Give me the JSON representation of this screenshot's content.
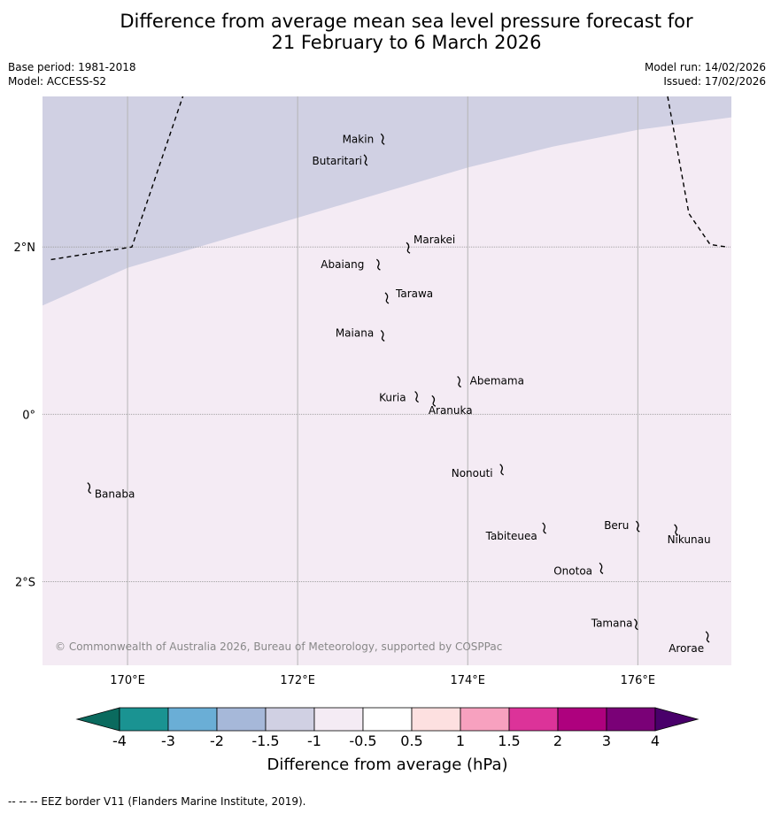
{
  "title": {
    "line1": "Difference from average mean sea level pressure forecast for",
    "line2": "21 February to 6 March 2026"
  },
  "meta": {
    "base_period": "Base period: 1981-2018",
    "model": "Model: ACCESS-S2",
    "model_run": "Model run: 14/02/2026",
    "issued": "Issued: 17/02/2026"
  },
  "map": {
    "lon_labels": [
      "170°E",
      "172°E",
      "174°E",
      "176°E"
    ],
    "lat_labels": [
      "2°N",
      "0°",
      "2°S"
    ],
    "copyright": "© Commonwealth of Australia 2026, Bureau of Meteorology, supported by COSPPac",
    "places": [
      {
        "name": "Makin",
        "lon": 173.0,
        "lat": 3.3
      },
      {
        "name": "Butaritari",
        "lon": 172.8,
        "lat": 3.05
      },
      {
        "name": "Marakei",
        "lon": 173.3,
        "lat": 2.0
      },
      {
        "name": "Abaiang",
        "lon": 172.95,
        "lat": 1.8
      },
      {
        "name": "Tarawa",
        "lon": 173.05,
        "lat": 1.4
      },
      {
        "name": "Maiana",
        "lon": 173.0,
        "lat": 0.95
      },
      {
        "name": "Abemama",
        "lon": 173.9,
        "lat": 0.4
      },
      {
        "name": "Kuria",
        "lon": 173.4,
        "lat": 0.22
      },
      {
        "name": "Aranuka",
        "lon": 173.6,
        "lat": 0.17
      },
      {
        "name": "Nonouti",
        "lon": 174.4,
        "lat": -0.65
      },
      {
        "name": "Banaba",
        "lon": 169.55,
        "lat": -0.87
      },
      {
        "name": "Tabiteuea",
        "lon": 174.9,
        "lat": -1.35
      },
      {
        "name": "Beru",
        "lon": 176.0,
        "lat": -1.33
      },
      {
        "name": "Nikunau",
        "lon": 176.45,
        "lat": -1.37
      },
      {
        "name": "Onotoa",
        "lon": 175.57,
        "lat": -1.83
      },
      {
        "name": "Tamana",
        "lon": 175.98,
        "lat": -2.5
      },
      {
        "name": "Arorae",
        "lon": 176.82,
        "lat": -2.65
      }
    ]
  },
  "chart_data": {
    "type": "heatmap",
    "variable": "Difference from average mean sea level pressure (hPa)",
    "domain": {
      "lon": [
        169.0,
        177.1
      ],
      "lat": [
        -3.0,
        3.8
      ]
    },
    "fields": [
      {
        "category": "-1.5 to -1",
        "color": "#d0d0e3",
        "region": "north-west of boundary"
      },
      {
        "category": "-1 to -0.5",
        "color": "#f4ebf4",
        "region": "remainder of domain"
      }
    ],
    "category_boundary": [
      {
        "lon": 169.0,
        "lat": 1.3
      },
      {
        "lon": 170.0,
        "lat": 1.75
      },
      {
        "lon": 171.0,
        "lat": 2.05
      },
      {
        "lon": 172.0,
        "lat": 2.35
      },
      {
        "lon": 173.0,
        "lat": 2.65
      },
      {
        "lon": 174.0,
        "lat": 2.95
      },
      {
        "lon": 175.0,
        "lat": 3.2
      },
      {
        "lon": 176.0,
        "lat": 3.4
      },
      {
        "lon": 177.1,
        "lat": 3.55
      }
    ],
    "eez_borders": [
      [
        {
          "lon": 169.1,
          "lat": 1.85
        },
        {
          "lon": 170.05,
          "lat": 2.0
        },
        {
          "lon": 170.65,
          "lat": 3.8
        }
      ],
      [
        {
          "lon": 176.35,
          "lat": 3.8
        },
        {
          "lon": 176.6,
          "lat": 2.4
        },
        {
          "lon": 176.85,
          "lat": 2.03
        },
        {
          "lon": 177.05,
          "lat": 2.0
        }
      ]
    ],
    "colorbar": {
      "label": "Difference from average (hPa)",
      "ticks": [
        "-4",
        "-3",
        "-2",
        "-1.5",
        "-1",
        "-0.5",
        "0.5",
        "1",
        "1.5",
        "2",
        "3",
        "4"
      ],
      "colors": [
        "#1a9392",
        "#6aaed6",
        "#a6b8d9",
        "#d0d0e3",
        "#f4ebf4",
        "#ffffff",
        "#fde0e0",
        "#f7a1bf",
        "#dc3399",
        "#ae017e",
        "#7a0177"
      ],
      "extend_low_color": "#0a6a5e",
      "extend_high_color": "#49006a"
    }
  },
  "footer": {
    "eez": "--  --  -- EEZ border V11 (Flanders Marine Institute, 2019)."
  }
}
